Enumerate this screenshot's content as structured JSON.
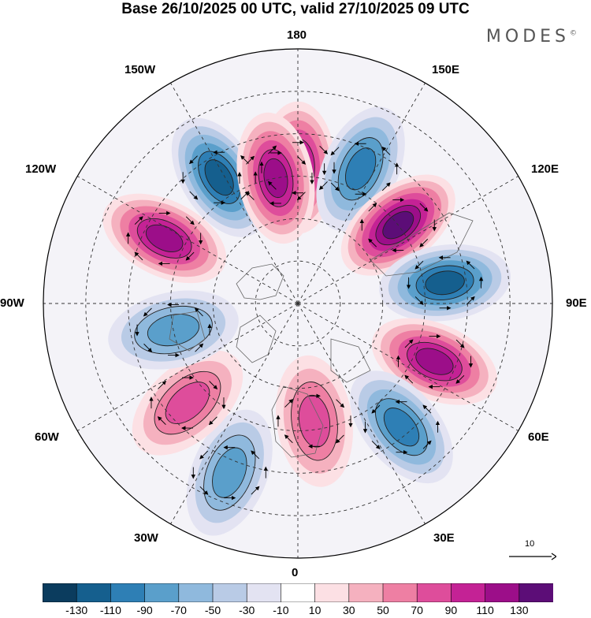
{
  "title": "Base 26/10/2025 00 UTC, valid 27/10/2025 09 UTC",
  "brand": "MODES",
  "brand_mark": "©",
  "longitude_labels": {
    "top": "180",
    "bottom": "0",
    "left": "90W",
    "right": "90E",
    "upper_left": "150W",
    "upper_right": "150E",
    "mid_upper_left": "120W",
    "mid_upper_right": "120E",
    "mid_lower_left": "60W",
    "mid_lower_right": "60E",
    "lower_left": "30W",
    "lower_right": "30E"
  },
  "vector_scale": {
    "value": "10"
  },
  "colorbar": {
    "colors": [
      "#0b3c5e",
      "#155f8e",
      "#2e7fb5",
      "#5a9fcb",
      "#8fb9dd",
      "#b9cbe6",
      "#e3e3f2",
      "#ffffff",
      "#fce0e4",
      "#f5b1bf",
      "#ee7fa3",
      "#de4d9b",
      "#c42295",
      "#9c0e89",
      "#5c0d77"
    ],
    "tick_labels": [
      "-130",
      "-110",
      "-90",
      "-70",
      "-50",
      "-30",
      "-10",
      "10",
      "30",
      "50",
      "70",
      "90",
      "110",
      "130"
    ]
  },
  "anomaly_lobes": [
    {
      "lon": 180,
      "lat": 58,
      "value": 110
    },
    {
      "lon": 155,
      "lat": 55,
      "value": -90
    },
    {
      "lon": 128,
      "lat": 60,
      "value": 130
    },
    {
      "lon": 98,
      "lat": 55,
      "value": -110
    },
    {
      "lon": 67,
      "lat": 55,
      "value": 110
    },
    {
      "lon": 40,
      "lat": 52,
      "value": -90
    },
    {
      "lon": 8,
      "lat": 62,
      "value": 70
    },
    {
      "lon": -22,
      "lat": 47,
      "value": -70
    },
    {
      "lon": -48,
      "lat": 55,
      "value": 70
    },
    {
      "lon": -78,
      "lat": 60,
      "value": -70
    },
    {
      "lon": -116,
      "lat": 55,
      "value": 110
    },
    {
      "lon": -148,
      "lat": 55,
      "value": -110
    },
    {
      "lon": -170,
      "lat": 60,
      "value": 110
    }
  ]
}
